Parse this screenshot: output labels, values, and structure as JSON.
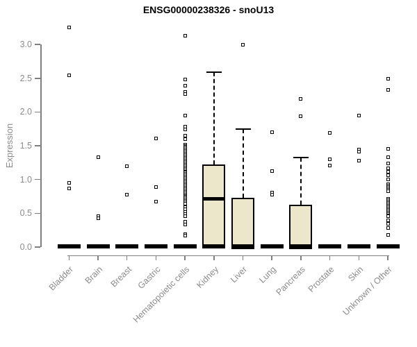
{
  "title": "ENSG00000238326 - snoU13",
  "chart_data": {
    "type": "boxplot",
    "title": "ENSG00000238326 - snoU13",
    "xlabel": "",
    "ylabel": "Expression",
    "ylim": [
      0,
      3.3
    ],
    "yticks": [
      "0.0",
      "0.5",
      "1.0",
      "1.5",
      "2.0",
      "2.5",
      "3.0"
    ],
    "grid": false,
    "legend": "none",
    "colors": {
      "box_fill": "#ece7cb",
      "box_border": "#000000",
      "axis": "#7f7f7f",
      "labels": "#8b8b8b",
      "title": "#000000"
    },
    "categories": [
      "Bladder",
      "Brain",
      "Breast",
      "Gastric",
      "Hematopoietic cells",
      "Kidney",
      "Liver",
      "Lung",
      "Pancreas",
      "Prostate",
      "Skin",
      "Unknown / Other"
    ],
    "series": [
      {
        "name": "Bladder",
        "q1": 0,
        "median": 0,
        "q3": 0,
        "whisker_low": 0,
        "whisker_high": 0,
        "outliers": [
          3.25,
          2.54,
          0.95,
          0.87
        ]
      },
      {
        "name": "Brain",
        "q1": 0,
        "median": 0,
        "q3": 0,
        "whisker_low": 0,
        "whisker_high": 0,
        "outliers": [
          1.33,
          0.46,
          0.43
        ]
      },
      {
        "name": "Breast",
        "q1": 0,
        "median": 0,
        "q3": 0,
        "whisker_low": 0,
        "whisker_high": 0,
        "outliers": [
          1.2,
          0.78
        ]
      },
      {
        "name": "Gastric",
        "q1": 0,
        "median": 0,
        "q3": 0,
        "whisker_low": 0,
        "whisker_high": 0,
        "outliers": [
          1.61,
          0.89,
          0.67
        ]
      },
      {
        "name": "Hematopoietic cells",
        "q1": 0,
        "median": 0,
        "q3": 0,
        "whisker_low": 0,
        "whisker_high": 0,
        "outliers": [
          3.13,
          2.48,
          2.39,
          2.3,
          2.27,
          1.95,
          1.78,
          1.74,
          1.65,
          1.6,
          1.52,
          1.5,
          1.48,
          1.46,
          1.44,
          1.42,
          1.4,
          1.38,
          1.36,
          1.34,
          1.32,
          1.3,
          1.28,
          1.26,
          1.24,
          1.22,
          1.2,
          1.18,
          1.16,
          1.14,
          1.12,
          1.1,
          1.08,
          1.06,
          1.04,
          1.02,
          1.0,
          0.98,
          0.96,
          0.94,
          0.92,
          0.9,
          0.88,
          0.86,
          0.84,
          0.82,
          0.8,
          0.78,
          0.76,
          0.74,
          0.72,
          0.7,
          0.68,
          0.66,
          0.64,
          0.59,
          0.56,
          0.52,
          0.49,
          0.46,
          0.37,
          0.33,
          0.19,
          0.17
        ]
      },
      {
        "name": "Kidney",
        "q1": 0,
        "median": 0.71,
        "q3": 1.22,
        "whisker_low": 0,
        "whisker_high": 2.59,
        "outliers": []
      },
      {
        "name": "Liver",
        "q1": 0,
        "median": 0,
        "q3": 0.73,
        "whisker_low": 0,
        "whisker_high": 1.75,
        "outliers": [
          3.0
        ]
      },
      {
        "name": "Lung",
        "q1": 0,
        "median": 0,
        "q3": 0,
        "whisker_low": 0,
        "whisker_high": 0,
        "outliers": [
          1.7,
          1.13,
          0.81,
          0.78
        ]
      },
      {
        "name": "Pancreas",
        "q1": 0,
        "median": 0,
        "q3": 0.63,
        "whisker_low": 0,
        "whisker_high": 1.33,
        "outliers": [
          2.19,
          1.94
        ]
      },
      {
        "name": "Prostate",
        "q1": 0,
        "median": 0,
        "q3": 0,
        "whisker_low": 0,
        "whisker_high": 0,
        "outliers": [
          1.69,
          1.3,
          1.21
        ]
      },
      {
        "name": "Skin",
        "q1": 0,
        "median": 0,
        "q3": 0,
        "whisker_low": 0,
        "whisker_high": 0,
        "outliers": [
          1.95,
          1.44,
          1.41,
          1.28
        ]
      },
      {
        "name": "Unknown / Other",
        "q1": 0,
        "median": 0,
        "q3": 0,
        "whisker_low": 0,
        "whisker_high": 0,
        "outliers": [
          2.49,
          2.33,
          1.45,
          1.33,
          1.24,
          1.17,
          1.11,
          1.06,
          1.0,
          0.93,
          0.91,
          0.89,
          0.87,
          0.85,
          0.83,
          0.71,
          0.69,
          0.67,
          0.65,
          0.63,
          0.61,
          0.59,
          0.57,
          0.55,
          0.53,
          0.51,
          0.49,
          0.47,
          0.46,
          0.4,
          0.34,
          0.28,
          0.18
        ]
      }
    ]
  }
}
